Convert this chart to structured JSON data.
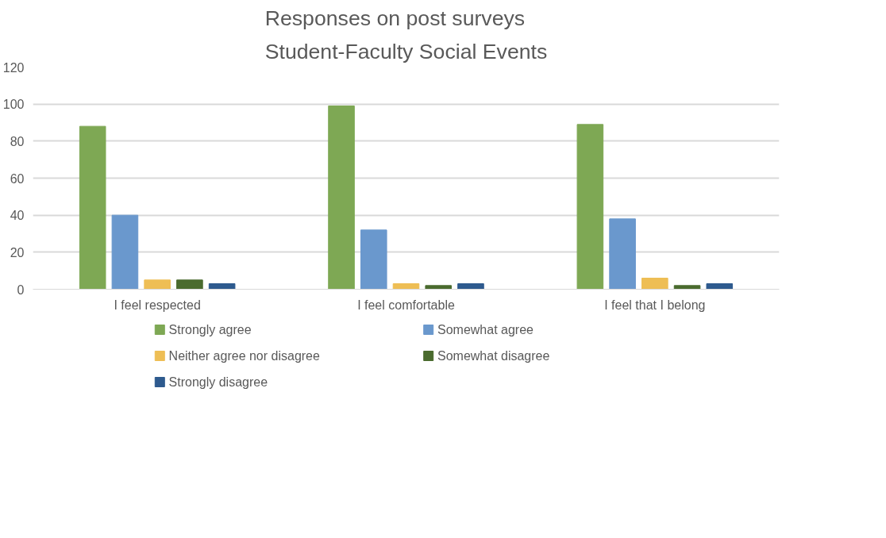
{
  "chart_data": {
    "type": "bar",
    "title": "Responses on post surveys\nStudent-Faculty Social Events",
    "categories": [
      "I feel respected",
      "I feel comfortable",
      "I feel that I belong"
    ],
    "series": [
      {
        "name": "Strongly agree",
        "color": "#7ea854",
        "values": [
          88,
          99,
          89
        ]
      },
      {
        "name": "Somewhat agree",
        "color": "#6a98cd",
        "values": [
          40,
          32,
          38
        ]
      },
      {
        "name": "Neither agree nor disagree",
        "color": "#eebe55",
        "values": [
          5,
          3,
          6
        ]
      },
      {
        "name": "Somewhat disagree",
        "color": "#4a6b2e",
        "values": [
          5,
          2,
          2
        ]
      },
      {
        "name": "Strongly disagree",
        "color": "#2e5a8e",
        "values": [
          3,
          3,
          3
        ]
      }
    ],
    "ylim": [
      0,
      120
    ],
    "yticks": [
      0,
      20,
      40,
      60,
      80,
      100,
      120
    ],
    "grid": "y",
    "legend": "bottom"
  }
}
